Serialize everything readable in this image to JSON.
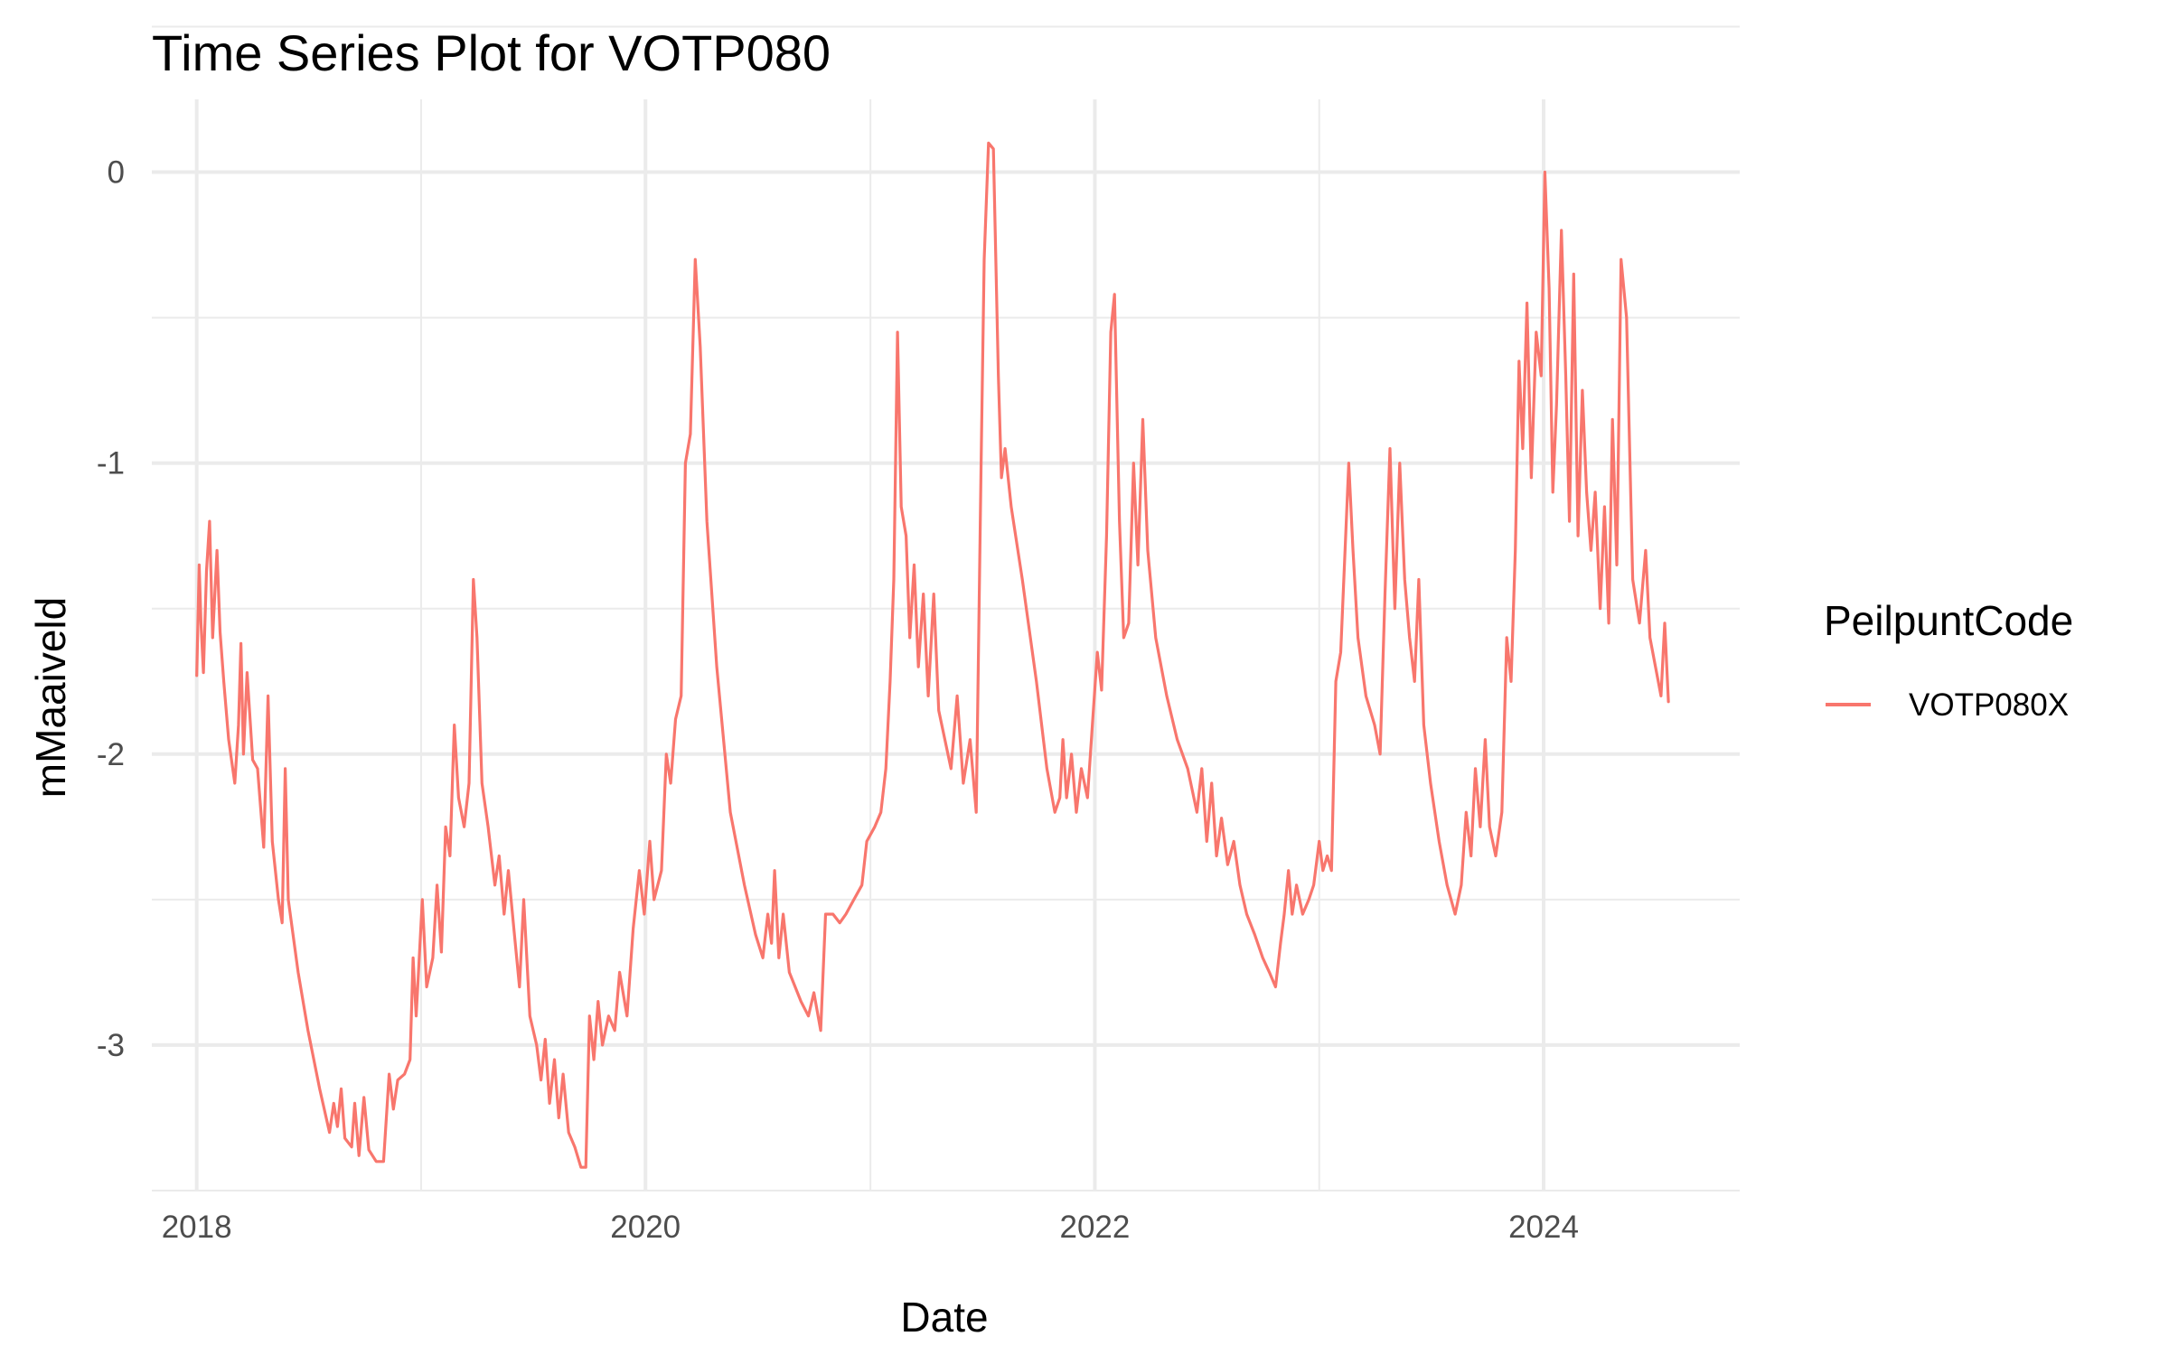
{
  "chart_data": {
    "type": "line",
    "title": "Time Series Plot for VOTP080",
    "xlabel": "Date",
    "ylabel": "mMaaiveld",
    "x_ticks": [
      "2018",
      "2020",
      "2022",
      "2024"
    ],
    "y_ticks": [
      "0",
      "-1",
      "-2",
      "-3"
    ],
    "xlim": [
      "2017-10-20",
      "2024-11-15"
    ],
    "ylim": [
      -3.5,
      0.25
    ],
    "grid": true,
    "legend_title": "PeilpuntCode",
    "legend_position": "right",
    "series": [
      {
        "name": "VOTP080X",
        "color": "#F8766D",
        "points": [
          [
            "2018-01-01",
            -1.73
          ],
          [
            "2018-01-05",
            -1.35
          ],
          [
            "2018-01-08",
            -1.55
          ],
          [
            "2018-01-12",
            -1.72
          ],
          [
            "2018-01-17",
            -1.37
          ],
          [
            "2018-01-22",
            -1.2
          ],
          [
            "2018-01-27",
            -1.6
          ],
          [
            "2018-02-03",
            -1.3
          ],
          [
            "2018-02-08",
            -1.58
          ],
          [
            "2018-02-14",
            -1.75
          ],
          [
            "2018-02-22",
            -1.95
          ],
          [
            "2018-03-04",
            -2.1
          ],
          [
            "2018-03-10",
            -1.9
          ],
          [
            "2018-03-14",
            -1.62
          ],
          [
            "2018-03-18",
            -2.0
          ],
          [
            "2018-03-24",
            -1.72
          ],
          [
            "2018-04-02",
            -2.02
          ],
          [
            "2018-04-10",
            -2.05
          ],
          [
            "2018-04-20",
            -2.32
          ],
          [
            "2018-04-27",
            -1.8
          ],
          [
            "2018-05-04",
            -2.3
          ],
          [
            "2018-05-14",
            -2.5
          ],
          [
            "2018-05-20",
            -2.58
          ],
          [
            "2018-05-25",
            -2.05
          ],
          [
            "2018-05-30",
            -2.5
          ],
          [
            "2018-06-15",
            -2.75
          ],
          [
            "2018-07-01",
            -2.95
          ],
          [
            "2018-07-20",
            -3.15
          ],
          [
            "2018-08-05",
            -3.3
          ],
          [
            "2018-08-12",
            -3.2
          ],
          [
            "2018-08-18",
            -3.28
          ],
          [
            "2018-08-24",
            -3.15
          ],
          [
            "2018-08-30",
            -3.32
          ],
          [
            "2018-09-10",
            -3.35
          ],
          [
            "2018-09-15",
            -3.2
          ],
          [
            "2018-09-22",
            -3.38
          ],
          [
            "2018-09-30",
            -3.18
          ],
          [
            "2018-10-08",
            -3.36
          ],
          [
            "2018-10-20",
            -3.4
          ],
          [
            "2018-11-01",
            -3.4
          ],
          [
            "2018-11-10",
            -3.1
          ],
          [
            "2018-11-17",
            -3.22
          ],
          [
            "2018-11-24",
            -3.12
          ],
          [
            "2018-12-05",
            -3.1
          ],
          [
            "2018-12-14",
            -3.05
          ],
          [
            "2018-12-19",
            -2.7
          ],
          [
            "2018-12-24",
            -2.9
          ],
          [
            "2019-01-03",
            -2.5
          ],
          [
            "2019-01-10",
            -2.8
          ],
          [
            "2019-01-20",
            -2.7
          ],
          [
            "2019-01-27",
            -2.45
          ],
          [
            "2019-02-03",
            -2.68
          ],
          [
            "2019-02-10",
            -2.25
          ],
          [
            "2019-02-17",
            -2.35
          ],
          [
            "2019-02-24",
            -1.9
          ],
          [
            "2019-03-03",
            -2.15
          ],
          [
            "2019-03-12",
            -2.25
          ],
          [
            "2019-03-20",
            -2.1
          ],
          [
            "2019-03-27",
            -1.4
          ],
          [
            "2019-04-02",
            -1.6
          ],
          [
            "2019-04-10",
            -2.1
          ],
          [
            "2019-04-20",
            -2.25
          ],
          [
            "2019-05-01",
            -2.45
          ],
          [
            "2019-05-08",
            -2.35
          ],
          [
            "2019-05-16",
            -2.55
          ],
          [
            "2019-05-23",
            -2.4
          ],
          [
            "2019-06-01",
            -2.6
          ],
          [
            "2019-06-10",
            -2.8
          ],
          [
            "2019-06-17",
            -2.5
          ],
          [
            "2019-06-27",
            -2.9
          ],
          [
            "2019-07-08",
            -3.0
          ],
          [
            "2019-07-15",
            -3.12
          ],
          [
            "2019-07-22",
            -2.98
          ],
          [
            "2019-07-29",
            -3.2
          ],
          [
            "2019-08-06",
            -3.05
          ],
          [
            "2019-08-13",
            -3.25
          ],
          [
            "2019-08-20",
            -3.1
          ],
          [
            "2019-08-29",
            -3.3
          ],
          [
            "2019-09-08",
            -3.35
          ],
          [
            "2019-09-18",
            -3.42
          ],
          [
            "2019-09-26",
            -3.42
          ],
          [
            "2019-10-02",
            -2.9
          ],
          [
            "2019-10-09",
            -3.05
          ],
          [
            "2019-10-16",
            -2.85
          ],
          [
            "2019-10-23",
            -3.0
          ],
          [
            "2019-11-02",
            -2.9
          ],
          [
            "2019-11-12",
            -2.95
          ],
          [
            "2019-11-20",
            -2.75
          ],
          [
            "2019-12-02",
            -2.9
          ],
          [
            "2019-12-12",
            -2.6
          ],
          [
            "2019-12-22",
            -2.4
          ],
          [
            "2019-12-30",
            -2.55
          ],
          [
            "2020-01-08",
            -2.3
          ],
          [
            "2020-01-15",
            -2.5
          ],
          [
            "2020-01-27",
            -2.4
          ],
          [
            "2020-02-04",
            -2.0
          ],
          [
            "2020-02-11",
            -2.1
          ],
          [
            "2020-02-19",
            -1.88
          ],
          [
            "2020-02-28",
            -1.8
          ],
          [
            "2020-03-06",
            -1.0
          ],
          [
            "2020-03-14",
            -0.9
          ],
          [
            "2020-03-22",
            -0.3
          ],
          [
            "2020-03-30",
            -0.6
          ],
          [
            "2020-04-10",
            -1.2
          ],
          [
            "2020-04-26",
            -1.7
          ],
          [
            "2020-05-18",
            -2.2
          ],
          [
            "2020-06-10",
            -2.45
          ],
          [
            "2020-06-28",
            -2.62
          ],
          [
            "2020-07-10",
            -2.7
          ],
          [
            "2020-07-18",
            -2.55
          ],
          [
            "2020-07-24",
            -2.65
          ],
          [
            "2020-07-29",
            -2.4
          ],
          [
            "2020-08-05",
            -2.7
          ],
          [
            "2020-08-12",
            -2.55
          ],
          [
            "2020-08-22",
            -2.75
          ],
          [
            "2020-09-10",
            -2.85
          ],
          [
            "2020-09-22",
            -2.9
          ],
          [
            "2020-10-01",
            -2.82
          ],
          [
            "2020-10-12",
            -2.95
          ],
          [
            "2020-10-20",
            -2.55
          ],
          [
            "2020-11-01",
            -2.55
          ],
          [
            "2020-11-12",
            -2.58
          ],
          [
            "2020-11-22",
            -2.55
          ],
          [
            "2020-12-05",
            -2.5
          ],
          [
            "2020-12-18",
            -2.45
          ],
          [
            "2020-12-26",
            -2.3
          ],
          [
            "2021-01-08",
            -2.25
          ],
          [
            "2021-01-18",
            -2.2
          ],
          [
            "2021-01-26",
            -2.05
          ],
          [
            "2021-02-02",
            -1.75
          ],
          [
            "2021-02-08",
            -1.4
          ],
          [
            "2021-02-14",
            -0.55
          ],
          [
            "2021-02-20",
            -1.15
          ],
          [
            "2021-02-28",
            -1.25
          ],
          [
            "2021-03-06",
            -1.6
          ],
          [
            "2021-03-13",
            -1.35
          ],
          [
            "2021-03-20",
            -1.7
          ],
          [
            "2021-03-28",
            -1.45
          ],
          [
            "2021-04-05",
            -1.8
          ],
          [
            "2021-04-14",
            -1.45
          ],
          [
            "2021-04-22",
            -1.85
          ],
          [
            "2021-05-02",
            -1.95
          ],
          [
            "2021-05-12",
            -2.05
          ],
          [
            "2021-05-22",
            -1.8
          ],
          [
            "2021-06-01",
            -2.1
          ],
          [
            "2021-06-12",
            -1.95
          ],
          [
            "2021-06-22",
            -2.2
          ],
          [
            "2021-06-30",
            -1.0
          ],
          [
            "2021-07-05",
            -0.3
          ],
          [
            "2021-07-12",
            0.1
          ],
          [
            "2021-07-20",
            0.08
          ],
          [
            "2021-07-28",
            -0.7
          ],
          [
            "2021-08-02",
            -1.05
          ],
          [
            "2021-08-08",
            -0.95
          ],
          [
            "2021-08-18",
            -1.15
          ],
          [
            "2021-09-05",
            -1.4
          ],
          [
            "2021-09-28",
            -1.75
          ],
          [
            "2021-10-15",
            -2.05
          ],
          [
            "2021-10-28",
            -2.2
          ],
          [
            "2021-11-05",
            -2.15
          ],
          [
            "2021-11-10",
            -1.95
          ],
          [
            "2021-11-16",
            -2.15
          ],
          [
            "2021-11-24",
            -2.0
          ],
          [
            "2021-12-02",
            -2.2
          ],
          [
            "2021-12-10",
            -2.05
          ],
          [
            "2021-12-20",
            -2.15
          ],
          [
            "2021-12-28",
            -1.9
          ],
          [
            "2022-01-05",
            -1.65
          ],
          [
            "2022-01-12",
            -1.78
          ],
          [
            "2022-01-20",
            -1.25
          ],
          [
            "2022-01-27",
            -0.55
          ],
          [
            "2022-02-02",
            -0.42
          ],
          [
            "2022-02-10",
            -1.2
          ],
          [
            "2022-02-17",
            -1.6
          ],
          [
            "2022-02-25",
            -1.55
          ],
          [
            "2022-03-05",
            -1.0
          ],
          [
            "2022-03-12",
            -1.35
          ],
          [
            "2022-03-20",
            -0.85
          ],
          [
            "2022-03-28",
            -1.3
          ],
          [
            "2022-04-10",
            -1.6
          ],
          [
            "2022-04-28",
            -1.8
          ],
          [
            "2022-05-15",
            -1.95
          ],
          [
            "2022-06-01",
            -2.05
          ],
          [
            "2022-06-16",
            -2.2
          ],
          [
            "2022-06-24",
            -2.05
          ],
          [
            "2022-07-02",
            -2.3
          ],
          [
            "2022-07-10",
            -2.1
          ],
          [
            "2022-07-18",
            -2.35
          ],
          [
            "2022-07-26",
            -2.22
          ],
          [
            "2022-08-05",
            -2.38
          ],
          [
            "2022-08-15",
            -2.3
          ],
          [
            "2022-08-25",
            -2.45
          ],
          [
            "2022-09-05",
            -2.55
          ],
          [
            "2022-09-18",
            -2.62
          ],
          [
            "2022-10-01",
            -2.7
          ],
          [
            "2022-10-12",
            -2.75
          ],
          [
            "2022-10-22",
            -2.8
          ],
          [
            "2022-10-30",
            -2.65
          ],
          [
            "2022-11-05",
            -2.55
          ],
          [
            "2022-11-12",
            -2.4
          ],
          [
            "2022-11-18",
            -2.55
          ],
          [
            "2022-11-25",
            -2.45
          ],
          [
            "2022-12-05",
            -2.55
          ],
          [
            "2022-12-15",
            -2.5
          ],
          [
            "2022-12-23",
            -2.45
          ],
          [
            "2023-01-01",
            -2.3
          ],
          [
            "2023-01-07",
            -2.4
          ],
          [
            "2023-01-14",
            -2.35
          ],
          [
            "2023-01-21",
            -2.4
          ],
          [
            "2023-01-28",
            -1.75
          ],
          [
            "2023-02-05",
            -1.65
          ],
          [
            "2023-02-12",
            -1.3
          ],
          [
            "2023-02-18",
            -1.0
          ],
          [
            "2023-02-25",
            -1.3
          ],
          [
            "2023-03-05",
            -1.6
          ],
          [
            "2023-03-18",
            -1.8
          ],
          [
            "2023-04-01",
            -1.9
          ],
          [
            "2023-04-10",
            -2.0
          ],
          [
            "2023-04-18",
            -1.45
          ],
          [
            "2023-04-26",
            -0.95
          ],
          [
            "2023-05-04",
            -1.5
          ],
          [
            "2023-05-12",
            -1.0
          ],
          [
            "2023-05-20",
            -1.4
          ],
          [
            "2023-05-28",
            -1.6
          ],
          [
            "2023-06-05",
            -1.75
          ],
          [
            "2023-06-12",
            -1.4
          ],
          [
            "2023-06-20",
            -1.9
          ],
          [
            "2023-07-01",
            -2.1
          ],
          [
            "2023-07-15",
            -2.3
          ],
          [
            "2023-07-28",
            -2.45
          ],
          [
            "2023-08-10",
            -2.55
          ],
          [
            "2023-08-20",
            -2.45
          ],
          [
            "2023-08-28",
            -2.2
          ],
          [
            "2023-09-05",
            -2.35
          ],
          [
            "2023-09-12",
            -2.05
          ],
          [
            "2023-09-20",
            -2.25
          ],
          [
            "2023-09-28",
            -1.95
          ],
          [
            "2023-10-05",
            -2.25
          ],
          [
            "2023-10-15",
            -2.35
          ],
          [
            "2023-10-25",
            -2.2
          ],
          [
            "2023-11-02",
            -1.6
          ],
          [
            "2023-11-09",
            -1.75
          ],
          [
            "2023-11-16",
            -1.3
          ],
          [
            "2023-11-22",
            -0.65
          ],
          [
            "2023-11-28",
            -0.95
          ],
          [
            "2023-12-05",
            -0.45
          ],
          [
            "2023-12-12",
            -1.05
          ],
          [
            "2023-12-20",
            -0.55
          ],
          [
            "2023-12-28",
            -0.7
          ],
          [
            "2024-01-03",
            0.0
          ],
          [
            "2024-01-10",
            -0.4
          ],
          [
            "2024-01-16",
            -1.1
          ],
          [
            "2024-01-22",
            -0.8
          ],
          [
            "2024-01-30",
            -0.2
          ],
          [
            "2024-02-06",
            -0.7
          ],
          [
            "2024-02-12",
            -1.2
          ],
          [
            "2024-02-19",
            -0.35
          ],
          [
            "2024-02-26",
            -1.25
          ],
          [
            "2024-03-04",
            -0.75
          ],
          [
            "2024-03-11",
            -1.1
          ],
          [
            "2024-03-18",
            -1.3
          ],
          [
            "2024-03-25",
            -1.1
          ],
          [
            "2024-04-02",
            -1.5
          ],
          [
            "2024-04-09",
            -1.15
          ],
          [
            "2024-04-16",
            -1.55
          ],
          [
            "2024-04-22",
            -0.85
          ],
          [
            "2024-04-29",
            -1.35
          ],
          [
            "2024-05-06",
            -0.3
          ],
          [
            "2024-05-15",
            -0.5
          ],
          [
            "2024-05-25",
            -1.4
          ],
          [
            "2024-06-05",
            -1.55
          ],
          [
            "2024-06-15",
            -1.3
          ],
          [
            "2024-06-22",
            -1.6
          ],
          [
            "2024-07-01",
            -1.7
          ],
          [
            "2024-07-10",
            -1.8
          ],
          [
            "2024-07-16",
            -1.55
          ],
          [
            "2024-07-22",
            -1.82
          ]
        ]
      }
    ]
  }
}
